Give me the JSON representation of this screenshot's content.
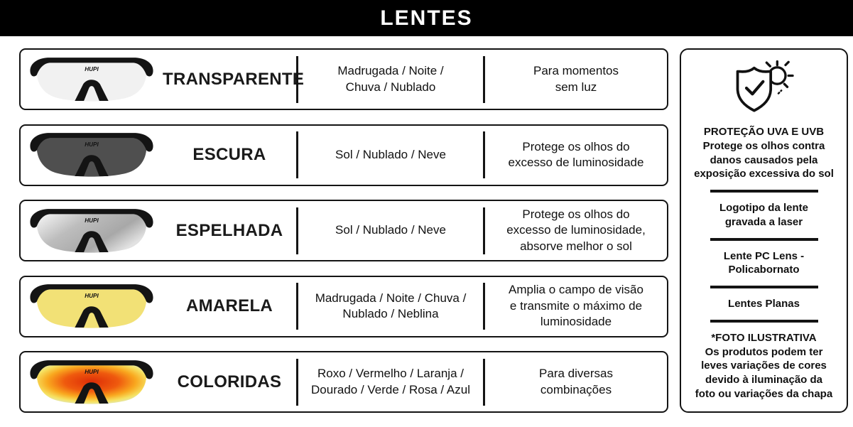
{
  "header": {
    "title": "LENTES"
  },
  "brand": "HUPI",
  "colors": {
    "header_bg": "#000000",
    "border": "#141414",
    "text": "#111111"
  },
  "rows": [
    {
      "name": "TRANSPARENTE",
      "conditions": "Madrugada / Noite /\nChuva / Nublado",
      "description": "Para momentos\nsem luz",
      "lens": {
        "kind": "solid",
        "color": "#f1f1f1"
      }
    },
    {
      "name": "ESCURA",
      "conditions": "Sol / Nublado / Neve",
      "description": "Protege os olhos do\nexcesso de luminosidade",
      "lens": {
        "kind": "solid",
        "color": "#4f4f4f"
      }
    },
    {
      "name": "ESPELHADA",
      "conditions": "Sol / Nublado / Neve",
      "description": "Protege os olhos do\nexcesso de luminosidade,\nabsorve melhor o sol",
      "lens": {
        "kind": "linear",
        "stops": [
          [
            "0%",
            "#f8f8f8"
          ],
          [
            "40%",
            "#bdbdbd"
          ],
          [
            "75%",
            "#a8a8a8"
          ],
          [
            "100%",
            "#e2e2e2"
          ]
        ]
      }
    },
    {
      "name": "AMARELA",
      "conditions": "Madrugada / Noite / Chuva /\nNublado / Neblina",
      "description": "Amplia o campo de visão\ne transmite o máximo de\nluminosidade",
      "lens": {
        "kind": "solid",
        "color": "#f2e176"
      }
    },
    {
      "name": "COLORIDAS",
      "conditions": "Roxo / Vermelho / Laranja /\nDourado / Verde / Rosa / Azul",
      "description": "Para diversas\ncombinações",
      "lens": {
        "kind": "radial",
        "stops": [
          [
            "0%",
            "#dd2d07"
          ],
          [
            "38%",
            "#ef5a0e"
          ],
          [
            "62%",
            "#f9a81f"
          ],
          [
            "80%",
            "#f6e160"
          ],
          [
            "100%",
            "#d9ede5"
          ]
        ]
      }
    }
  ],
  "sidebar": {
    "uv_title": "PROTEÇÃO UVA E UVB",
    "uv_body": "Protege os olhos contra\ndanos causados pela\nexposição excessiva do sol",
    "items": [
      {
        "label": "Logotipo da lente\ngravada a laser"
      },
      {
        "label": "Lente PC Lens -\nPolicabornato"
      },
      {
        "label": "Lentes Planas"
      }
    ],
    "photo_title": "*FOTO ILUSTRATIVA",
    "photo_body": "Os produtos podem ter\nleves variações de cores\ndevido à iluminação da\nfoto ou variações da chapa"
  }
}
